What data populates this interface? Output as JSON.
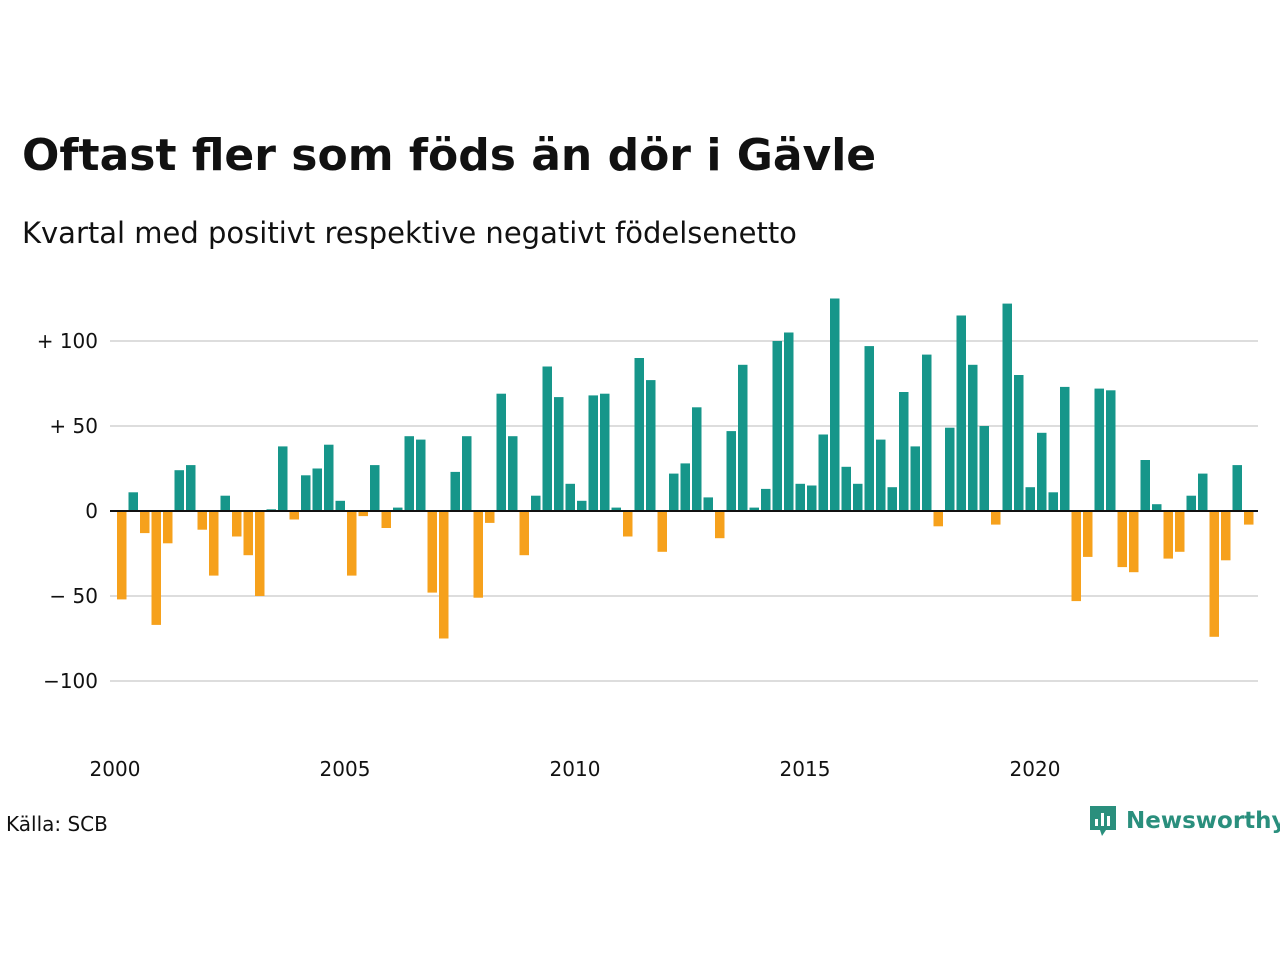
{
  "title": "Oftast fler som föds än dör i Gävle",
  "subtitle": "Kvartal med positivt respektive negativt födelsenetto",
  "source": "Källa: SCB",
  "brand": "Newsworthy",
  "colors": {
    "positive": "#16968a",
    "negative": "#f6a11c",
    "grid": "#dddddd",
    "brand": "#2a8f7d"
  },
  "chart_data": {
    "type": "bar",
    "title": "Oftast fler som föds än dör i Gävle",
    "subtitle": "Kvartal med positivt respektive negativt födelsenetto",
    "xlabel": "",
    "ylabel": "",
    "start_year": 2000,
    "frequency": "quarterly",
    "ylim": [
      -135,
      130
    ],
    "yticks": [
      100,
      50,
      0,
      -50,
      -100
    ],
    "ytick_labels": [
      "+ 100",
      "+  50",
      "0",
      "− 50",
      "−100"
    ],
    "xticks": [
      "2000",
      "2005",
      "2010",
      "2015",
      "2020"
    ],
    "grid": true,
    "values": [
      -52,
      11,
      -13,
      -67,
      -19,
      24,
      27,
      -11,
      -38,
      9,
      -15,
      -26,
      -50,
      1,
      38,
      -5,
      21,
      25,
      39,
      6,
      -38,
      -3,
      27,
      -10,
      2,
      44,
      42,
      -48,
      -75,
      23,
      44,
      -51,
      -7,
      69,
      44,
      -26,
      9,
      85,
      67,
      16,
      6,
      68,
      69,
      2,
      -15,
      90,
      77,
      -24,
      22,
      28,
      61,
      8,
      -16,
      47,
      86,
      2,
      13,
      100,
      105,
      16,
      15,
      45,
      125,
      26,
      16,
      97,
      42,
      14,
      70,
      38,
      92,
      -9,
      49,
      115,
      86,
      50,
      -8,
      122,
      80,
      14,
      46,
      11,
      73,
      -53,
      -27,
      72,
      71,
      -33,
      -36,
      30,
      4,
      -28,
      -24,
      9,
      22,
      -74,
      -29,
      27,
      -8
    ]
  }
}
